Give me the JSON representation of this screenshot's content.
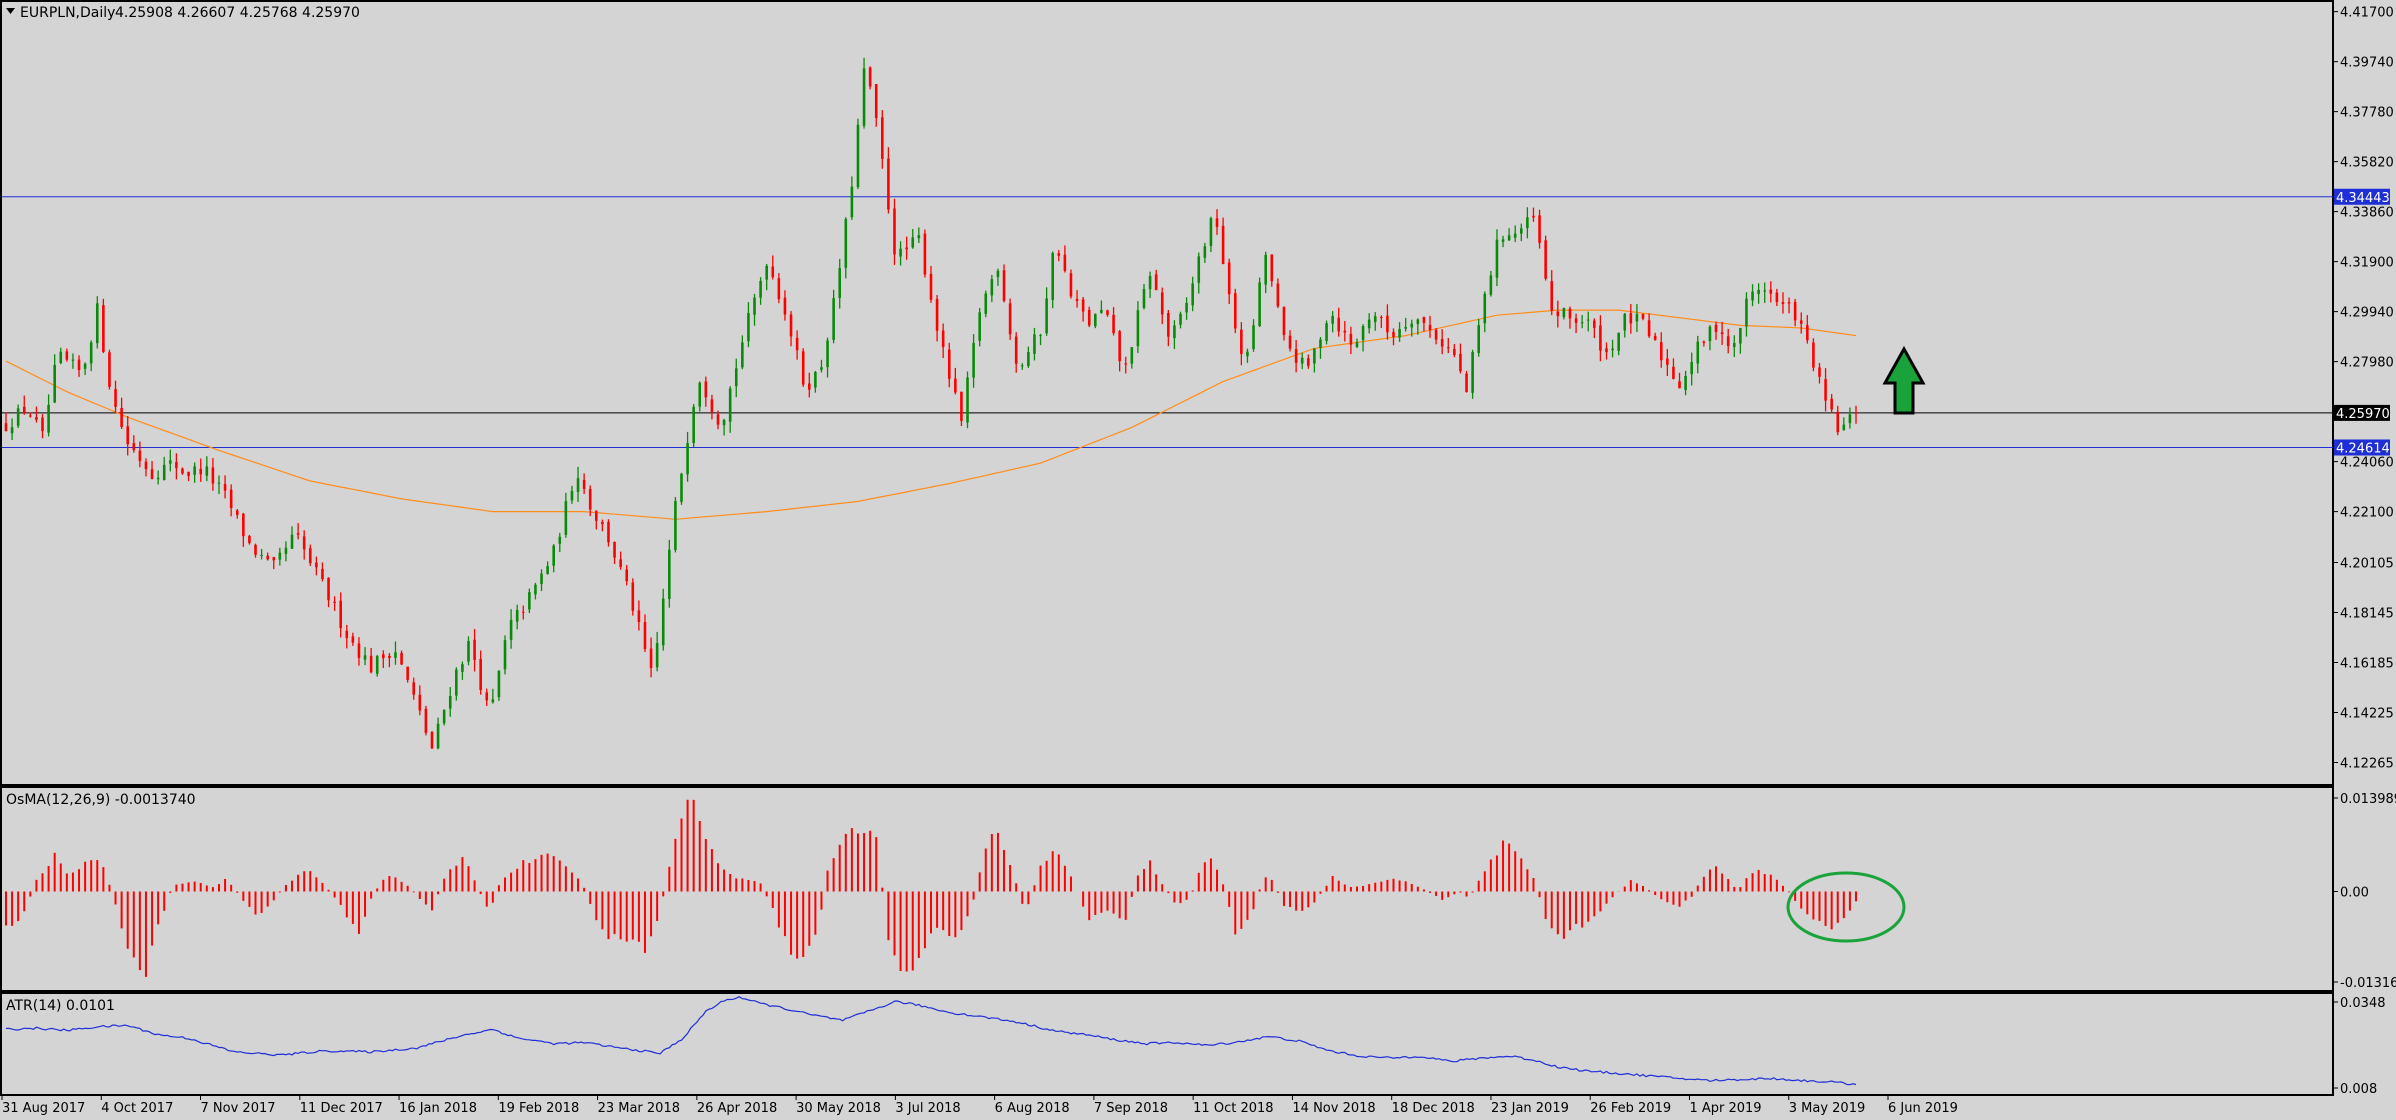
{
  "colors": {
    "background": "#d4d4d4",
    "bull": "#0a8a0a",
    "bear": "#ff0000",
    "ma": "#ff8c1a",
    "level_line": "#1f2fd6",
    "current_line": "#000000",
    "atr": "#1f2fd6",
    "arrow": "#1aa33a",
    "circle": "#1aa33a"
  },
  "main": {
    "symbol_label": "EURPLN,Daily",
    "ohlc_label": "4.25908 4.26607 4.25768 4.25970"
  },
  "osma": {
    "label": "OsMA(12,26,9) -0.0013740"
  },
  "atr": {
    "label": "ATR(14) 0.0101"
  },
  "annotations": {
    "arrow": "up-arrow-icon",
    "circle": "highlight-circle"
  },
  "chart_data": [
    {
      "type": "candlestick",
      "name": "price",
      "ylim": [
        4.115,
        4.42
      ],
      "y_ticks": [
        "4.41700",
        "4.39740",
        "4.37780",
        "4.35820",
        "4.33860",
        "4.31900",
        "4.29940",
        "4.27980",
        "4.24060",
        "4.22100",
        "4.20105",
        "4.18145",
        "4.16185",
        "4.14225",
        "4.12265"
      ],
      "x_ticks": [
        "31 Aug 2017",
        "4 Oct 2017",
        "7 Nov 2017",
        "11 Dec 2017",
        "16 Jan 2018",
        "19 Feb 2018",
        "23 Mar 2018",
        "26 Apr 2018",
        "30 May 2018",
        "3 Jul 2018",
        "6 Aug 2018",
        "7 Sep 2018",
        "11 Oct 2018",
        "14 Nov 2018",
        "18 Dec 2018",
        "23 Jan 2019",
        "26 Feb 2019",
        "1 Apr 2019",
        "3 May 2019",
        "6 Jun 2019"
      ],
      "close_keypoints": [
        [
          0,
          4.255
        ],
        [
          14,
          4.262
        ],
        [
          24,
          4.25
        ],
        [
          34,
          4.282
        ],
        [
          50,
          4.275
        ],
        [
          60,
          4.3
        ],
        [
          70,
          4.265
        ],
        [
          80,
          4.248
        ],
        [
          96,
          4.236
        ],
        [
          110,
          4.24
        ],
        [
          118,
          4.236
        ],
        [
          130,
          4.238
        ],
        [
          145,
          4.226
        ],
        [
          160,
          4.208
        ],
        [
          175,
          4.198
        ],
        [
          190,
          4.212
        ],
        [
          210,
          4.19
        ],
        [
          225,
          4.172
        ],
        [
          240,
          4.16
        ],
        [
          255,
          4.168
        ],
        [
          270,
          4.145
        ],
        [
          280,
          4.128
        ],
        [
          295,
          4.157
        ],
        [
          305,
          4.17
        ],
        [
          318,
          4.14
        ],
        [
          330,
          4.175
        ],
        [
          345,
          4.188
        ],
        [
          360,
          4.205
        ],
        [
          375,
          4.238
        ],
        [
          385,
          4.222
        ],
        [
          395,
          4.212
        ],
        [
          410,
          4.188
        ],
        [
          425,
          4.155
        ],
        [
          440,
          4.223
        ],
        [
          455,
          4.275
        ],
        [
          470,
          4.255
        ],
        [
          485,
          4.29
        ],
        [
          500,
          4.32
        ],
        [
          512,
          4.3
        ],
        [
          525,
          4.27
        ],
        [
          535,
          4.276
        ],
        [
          545,
          4.305
        ],
        [
          555,
          4.345
        ],
        [
          565,
          4.398
        ],
        [
          575,
          4.362
        ],
        [
          585,
          4.32
        ],
        [
          600,
          4.328
        ],
        [
          615,
          4.285
        ],
        [
          628,
          4.256
        ],
        [
          640,
          4.3
        ],
        [
          652,
          4.318
        ],
        [
          665,
          4.276
        ],
        [
          680,
          4.292
        ],
        [
          690,
          4.328
        ],
        [
          700,
          4.305
        ],
        [
          712,
          4.295
        ],
        [
          722,
          4.3
        ],
        [
          735,
          4.275
        ],
        [
          745,
          4.3
        ],
        [
          752,
          4.315
        ],
        [
          765,
          4.288
        ],
        [
          775,
          4.3
        ],
        [
          785,
          4.322
        ],
        [
          795,
          4.338
        ],
        [
          805,
          4.3
        ],
        [
          815,
          4.278
        ],
        [
          828,
          4.322
        ],
        [
          840,
          4.288
        ],
        [
          855,
          4.276
        ],
        [
          870,
          4.3
        ],
        [
          885,
          4.285
        ],
        [
          898,
          4.3
        ],
        [
          910,
          4.29
        ],
        [
          925,
          4.298
        ],
        [
          940,
          4.29
        ],
        [
          952,
          4.282
        ],
        [
          960,
          4.268
        ],
        [
          970,
          4.3
        ],
        [
          982,
          4.33
        ],
        [
          992,
          4.33
        ],
        [
          1005,
          4.336
        ],
        [
          1015,
          4.3
        ],
        [
          1028,
          4.297
        ],
        [
          1040,
          4.295
        ],
        [
          1052,
          4.283
        ],
        [
          1065,
          4.297
        ],
        [
          1075,
          4.295
        ],
        [
          1088,
          4.282
        ],
        [
          1100,
          4.271
        ],
        [
          1112,
          4.285
        ],
        [
          1125,
          4.295
        ],
        [
          1135,
          4.283
        ],
        [
          1145,
          4.305
        ],
        [
          1155,
          4.31
        ],
        [
          1165,
          4.302
        ],
        [
          1175,
          4.3
        ],
        [
          1185,
          4.285
        ],
        [
          1195,
          4.265
        ],
        [
          1205,
          4.252
        ],
        [
          1212,
          4.257
        ],
        [
          1216,
          4.2597
        ]
      ],
      "ma_keypoints": [
        [
          0,
          4.28
        ],
        [
          40,
          4.268
        ],
        [
          80,
          4.258
        ],
        [
          140,
          4.245
        ],
        [
          200,
          4.233
        ],
        [
          260,
          4.226
        ],
        [
          320,
          4.221
        ],
        [
          380,
          4.221
        ],
        [
          440,
          4.218
        ],
        [
          500,
          4.221
        ],
        [
          560,
          4.225
        ],
        [
          620,
          4.232
        ],
        [
          680,
          4.24
        ],
        [
          740,
          4.254
        ],
        [
          800,
          4.272
        ],
        [
          860,
          4.285
        ],
        [
          920,
          4.29
        ],
        [
          980,
          4.298
        ],
        [
          1020,
          4.3
        ],
        [
          1060,
          4.3
        ],
        [
          1100,
          4.297
        ],
        [
          1140,
          4.294
        ],
        [
          1180,
          4.293
        ],
        [
          1216,
          4.29
        ]
      ],
      "levels": [
        {
          "label": "4.34443",
          "value": 4.34443,
          "style": "resistance"
        },
        {
          "label": "4.25970",
          "value": 4.2597,
          "style": "current"
        },
        {
          "label": "4.24614",
          "value": 4.24614,
          "style": "support"
        }
      ]
    },
    {
      "type": "bar",
      "name": "osma",
      "ylim": [
        -0.0135,
        0.0142
      ],
      "y_ticks": [
        "0.0139895",
        "0.00",
        "-0.013162"
      ],
      "keypoints": [
        [
          0,
          -0.005
        ],
        [
          10,
          -0.004
        ],
        [
          20,
          0.0015
        ],
        [
          32,
          0.005
        ],
        [
          42,
          0.002
        ],
        [
          55,
          0.005
        ],
        [
          65,
          0.003
        ],
        [
          72,
          -0.002
        ],
        [
          80,
          -0.008
        ],
        [
          90,
          -0.0125
        ],
        [
          100,
          -0.005
        ],
        [
          110,
          0.001
        ],
        [
          125,
          0.0015
        ],
        [
          135,
          0.0005
        ],
        [
          145,
          0.0018
        ],
        [
          155,
          -0.001
        ],
        [
          165,
          -0.0035
        ],
        [
          175,
          -0.0015
        ],
        [
          185,
          0.0012
        ],
        [
          198,
          0.003
        ],
        [
          210,
          0.0008
        ],
        [
          220,
          -0.002
        ],
        [
          232,
          -0.006
        ],
        [
          240,
          -0.001
        ],
        [
          250,
          0.0025
        ],
        [
          262,
          0.0012
        ],
        [
          272,
          -0.001
        ],
        [
          280,
          -0.0025
        ],
        [
          290,
          0.0028
        ],
        [
          302,
          0.005
        ],
        [
          310,
          0.0005
        ],
        [
          318,
          -0.003
        ],
        [
          325,
          0.0015
        ],
        [
          340,
          0.004
        ],
        [
          355,
          0.005
        ],
        [
          370,
          0.0035
        ],
        [
          380,
          0.0005
        ],
        [
          390,
          -0.0055
        ],
        [
          405,
          -0.007
        ],
        [
          420,
          -0.008
        ],
        [
          430,
          -0.003
        ],
        [
          438,
          0.006
        ],
        [
          450,
          0.0135
        ],
        [
          460,
          0.008
        ],
        [
          470,
          0.003
        ],
        [
          480,
          0.002
        ],
        [
          495,
          0.0015
        ],
        [
          505,
          -0.003
        ],
        [
          515,
          -0.0085
        ],
        [
          525,
          -0.0095
        ],
        [
          535,
          -0.004
        ],
        [
          540,
          0.003
        ],
        [
          550,
          0.0075
        ],
        [
          562,
          0.009
        ],
        [
          572,
          0.008
        ],
        [
          580,
          -0.007
        ],
        [
          590,
          -0.0125
        ],
        [
          600,
          -0.009
        ],
        [
          612,
          -0.005
        ],
        [
          625,
          -0.0065
        ],
        [
          635,
          -0.002
        ],
        [
          645,
          0.007
        ],
        [
          652,
          0.0085
        ],
        [
          660,
          0.004
        ],
        [
          670,
          -0.003
        ],
        [
          680,
          0.0035
        ],
        [
          690,
          0.0065
        ],
        [
          700,
          0.002
        ],
        [
          712,
          -0.004
        ],
        [
          722,
          -0.0025
        ],
        [
          735,
          -0.0045
        ],
        [
          745,
          0.003
        ],
        [
          752,
          0.004
        ],
        [
          760,
          0.001
        ],
        [
          770,
          -0.002
        ],
        [
          778,
          -0.001
        ],
        [
          785,
          0.003
        ],
        [
          793,
          0.005
        ],
        [
          800,
          0.001
        ],
        [
          808,
          -0.0055
        ],
        [
          818,
          -0.004
        ],
        [
          825,
          0.001
        ],
        [
          830,
          0.0025
        ],
        [
          840,
          -0.002
        ],
        [
          850,
          -0.003
        ],
        [
          860,
          -0.0015
        ],
        [
          872,
          0.002
        ],
        [
          885,
          0.0005
        ],
        [
          900,
          0.0012
        ],
        [
          915,
          0.0018
        ],
        [
          930,
          0.0005
        ],
        [
          945,
          -0.0012
        ],
        [
          955,
          0.0
        ],
        [
          962,
          -0.001
        ],
        [
          968,
          0.0015
        ],
        [
          978,
          0.005
        ],
        [
          986,
          0.007
        ],
        [
          996,
          0.0045
        ],
        [
          1005,
          0.0015
        ],
        [
          1012,
          -0.004
        ],
        [
          1022,
          -0.007
        ],
        [
          1032,
          -0.005
        ],
        [
          1042,
          -0.004
        ],
        [
          1055,
          -0.001
        ],
        [
          1068,
          0.0015
        ],
        [
          1078,
          0.0005
        ],
        [
          1090,
          -0.0015
        ],
        [
          1100,
          -0.002
        ],
        [
          1108,
          -0.0008
        ],
        [
          1115,
          0.002
        ],
        [
          1122,
          0.0035
        ],
        [
          1130,
          0.0025
        ],
        [
          1138,
          0.0
        ],
        [
          1145,
          0.002
        ],
        [
          1152,
          0.003
        ],
        [
          1162,
          0.002
        ],
        [
          1170,
          0.0005
        ],
        [
          1175,
          -0.001
        ],
        [
          1185,
          -0.0035
        ],
        [
          1198,
          -0.005
        ],
        [
          1206,
          -0.0045
        ],
        [
          1212,
          -0.0025
        ],
        [
          1216,
          -0.00137
        ]
      ]
    },
    {
      "type": "line",
      "name": "atr",
      "ylim": [
        0.008,
        0.0348
      ],
      "y_ticks": [
        "0.0348",
        "0.008"
      ],
      "keypoints": [
        [
          0,
          0.0255
        ],
        [
          20,
          0.0258
        ],
        [
          40,
          0.0252
        ],
        [
          60,
          0.0262
        ],
        [
          80,
          0.0266
        ],
        [
          100,
          0.024
        ],
        [
          120,
          0.023
        ],
        [
          150,
          0.0192
        ],
        [
          180,
          0.0183
        ],
        [
          210,
          0.0195
        ],
        [
          240,
          0.0192
        ],
        [
          270,
          0.0203
        ],
        [
          300,
          0.0238
        ],
        [
          320,
          0.0255
        ],
        [
          335,
          0.0232
        ],
        [
          360,
          0.0215
        ],
        [
          380,
          0.0218
        ],
        [
          400,
          0.0205
        ],
        [
          430,
          0.0188
        ],
        [
          445,
          0.023
        ],
        [
          460,
          0.0305
        ],
        [
          472,
          0.0335
        ],
        [
          482,
          0.0345
        ],
        [
          495,
          0.0328
        ],
        [
          510,
          0.0315
        ],
        [
          530,
          0.0295
        ],
        [
          550,
          0.028
        ],
        [
          570,
          0.031
        ],
        [
          585,
          0.0333
        ],
        [
          600,
          0.0322
        ],
        [
          620,
          0.0302
        ],
        [
          645,
          0.0288
        ],
        [
          665,
          0.0275
        ],
        [
          690,
          0.025
        ],
        [
          710,
          0.024
        ],
        [
          730,
          0.0225
        ],
        [
          750,
          0.0215
        ],
        [
          770,
          0.0218
        ],
        [
          790,
          0.021
        ],
        [
          810,
          0.022
        ],
        [
          830,
          0.0235
        ],
        [
          850,
          0.0222
        ],
        [
          870,
          0.0195
        ],
        [
          890,
          0.018
        ],
        [
          910,
          0.0175
        ],
        [
          930,
          0.018
        ],
        [
          950,
          0.0165
        ],
        [
          970,
          0.0175
        ],
        [
          990,
          0.018
        ],
        [
          1005,
          0.0168
        ],
        [
          1020,
          0.015
        ],
        [
          1040,
          0.0138
        ],
        [
          1060,
          0.0132
        ],
        [
          1080,
          0.0125
        ],
        [
          1100,
          0.0118
        ],
        [
          1120,
          0.0112
        ],
        [
          1140,
          0.0115
        ],
        [
          1160,
          0.0118
        ],
        [
          1180,
          0.0112
        ],
        [
          1200,
          0.0108
        ],
        [
          1216,
          0.0101
        ]
      ]
    }
  ]
}
